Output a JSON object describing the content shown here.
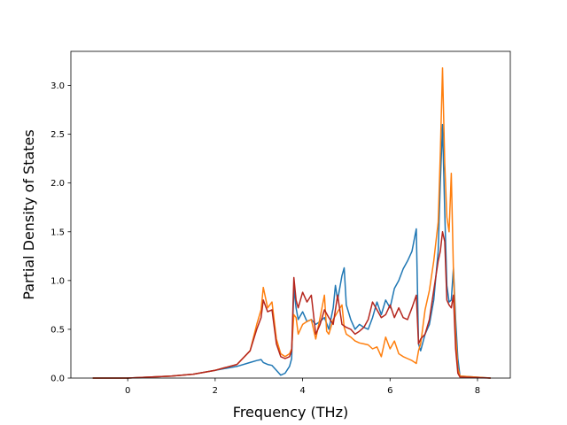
{
  "chart_data": {
    "type": "line",
    "title": "",
    "xlabel": "Frequency (THz)",
    "ylabel": "Partial Density of States",
    "xlim": [
      -1.3,
      8.75
    ],
    "ylim": [
      0,
      3.35
    ],
    "xticks": [
      0,
      2,
      4,
      6,
      8
    ],
    "yticks": [
      0.0,
      0.5,
      1.0,
      1.5,
      2.0,
      2.5,
      3.0
    ],
    "xtick_labels": [
      "0",
      "2",
      "4",
      "6",
      "8"
    ],
    "ytick_labels": [
      "0.0",
      "0.5",
      "1.0",
      "1.5",
      "2.0",
      "2.5",
      "3.0"
    ],
    "grid": false,
    "legend": "none",
    "series": [
      {
        "color": "#1f77b4",
        "x": [
          -0.8,
          0,
          0.5,
          1.0,
          1.5,
          2.0,
          2.5,
          2.8,
          2.95,
          3.05,
          3.1,
          3.2,
          3.3,
          3.4,
          3.5,
          3.6,
          3.7,
          3.75,
          3.8,
          3.85,
          3.9,
          4.0,
          4.1,
          4.2,
          4.3,
          4.4,
          4.5,
          4.6,
          4.7,
          4.75,
          4.8,
          4.9,
          4.95,
          5.0,
          5.1,
          5.2,
          5.3,
          5.4,
          5.5,
          5.6,
          5.7,
          5.8,
          5.9,
          6.0,
          6.1,
          6.2,
          6.3,
          6.4,
          6.5,
          6.6,
          6.65,
          6.7,
          6.8,
          6.9,
          7.0,
          7.1,
          7.15,
          7.2,
          7.25,
          7.3,
          7.35,
          7.4,
          7.45,
          7.5,
          7.55,
          7.6,
          8.3
        ],
        "y": [
          0,
          0,
          0.01,
          0.02,
          0.04,
          0.08,
          0.12,
          0.16,
          0.18,
          0.19,
          0.16,
          0.14,
          0.13,
          0.08,
          0.03,
          0.05,
          0.12,
          0.2,
          0.92,
          0.72,
          0.6,
          0.68,
          0.58,
          0.6,
          0.55,
          0.58,
          0.62,
          0.5,
          0.72,
          0.95,
          0.8,
          1.05,
          1.13,
          0.75,
          0.6,
          0.5,
          0.55,
          0.52,
          0.5,
          0.62,
          0.78,
          0.65,
          0.8,
          0.72,
          0.92,
          1.0,
          1.12,
          1.2,
          1.3,
          1.53,
          0.35,
          0.28,
          0.45,
          0.55,
          0.8,
          1.3,
          2.0,
          2.6,
          1.7,
          0.95,
          0.78,
          0.8,
          1.13,
          0.6,
          0.2,
          0.02,
          0
        ]
      },
      {
        "color": "#ff7f0e",
        "x": [
          -0.8,
          0,
          0.5,
          1.0,
          1.5,
          2.0,
          2.5,
          2.8,
          2.95,
          3.05,
          3.1,
          3.2,
          3.3,
          3.4,
          3.5,
          3.6,
          3.7,
          3.75,
          3.8,
          3.85,
          3.9,
          4.0,
          4.1,
          4.2,
          4.3,
          4.4,
          4.5,
          4.55,
          4.6,
          4.7,
          4.8,
          4.9,
          4.95,
          5.0,
          5.1,
          5.2,
          5.3,
          5.4,
          5.5,
          5.6,
          5.7,
          5.8,
          5.9,
          6.0,
          6.1,
          6.2,
          6.3,
          6.4,
          6.5,
          6.6,
          6.65,
          6.7,
          6.8,
          6.9,
          7.0,
          7.1,
          7.15,
          7.2,
          7.25,
          7.3,
          7.35,
          7.4,
          7.45,
          7.5,
          7.55,
          7.6,
          8.3
        ],
        "y": [
          0,
          0,
          0.01,
          0.02,
          0.04,
          0.08,
          0.14,
          0.28,
          0.55,
          0.7,
          0.93,
          0.72,
          0.78,
          0.4,
          0.25,
          0.22,
          0.25,
          0.3,
          0.65,
          0.62,
          0.45,
          0.55,
          0.58,
          0.6,
          0.4,
          0.62,
          0.85,
          0.48,
          0.45,
          0.6,
          0.68,
          0.75,
          0.52,
          0.45,
          0.42,
          0.38,
          0.36,
          0.35,
          0.34,
          0.3,
          0.32,
          0.22,
          0.42,
          0.3,
          0.38,
          0.25,
          0.22,
          0.2,
          0.18,
          0.15,
          0.28,
          0.35,
          0.7,
          0.9,
          1.2,
          1.6,
          2.3,
          3.18,
          2.2,
          1.65,
          1.5,
          2.1,
          1.1,
          0.45,
          0.1,
          0.02,
          0
        ]
      },
      {
        "color": "#b5261e",
        "x": [
          -0.8,
          0,
          0.5,
          1.0,
          1.5,
          2.0,
          2.5,
          2.8,
          2.95,
          3.05,
          3.1,
          3.2,
          3.3,
          3.4,
          3.5,
          3.6,
          3.7,
          3.75,
          3.8,
          3.85,
          3.9,
          4.0,
          4.1,
          4.2,
          4.3,
          4.4,
          4.5,
          4.6,
          4.7,
          4.8,
          4.9,
          5.0,
          5.1,
          5.2,
          5.3,
          5.4,
          5.5,
          5.6,
          5.7,
          5.8,
          5.9,
          6.0,
          6.1,
          6.2,
          6.3,
          6.4,
          6.5,
          6.6,
          6.65,
          6.7,
          6.8,
          6.9,
          7.0,
          7.1,
          7.15,
          7.2,
          7.25,
          7.3,
          7.35,
          7.4,
          7.45,
          7.5,
          7.55,
          7.6,
          8.3
        ],
        "y": [
          0,
          0,
          0.01,
          0.02,
          0.04,
          0.08,
          0.14,
          0.28,
          0.5,
          0.62,
          0.8,
          0.68,
          0.7,
          0.35,
          0.22,
          0.2,
          0.22,
          0.28,
          1.03,
          0.8,
          0.72,
          0.88,
          0.78,
          0.85,
          0.45,
          0.55,
          0.7,
          0.62,
          0.55,
          0.85,
          0.55,
          0.52,
          0.5,
          0.45,
          0.48,
          0.52,
          0.6,
          0.78,
          0.7,
          0.62,
          0.65,
          0.75,
          0.62,
          0.72,
          0.62,
          0.6,
          0.72,
          0.85,
          0.35,
          0.4,
          0.45,
          0.6,
          0.9,
          1.2,
          1.3,
          1.5,
          1.4,
          0.8,
          0.75,
          0.72,
          0.85,
          0.3,
          0.05,
          0.01,
          0
        ]
      }
    ]
  }
}
